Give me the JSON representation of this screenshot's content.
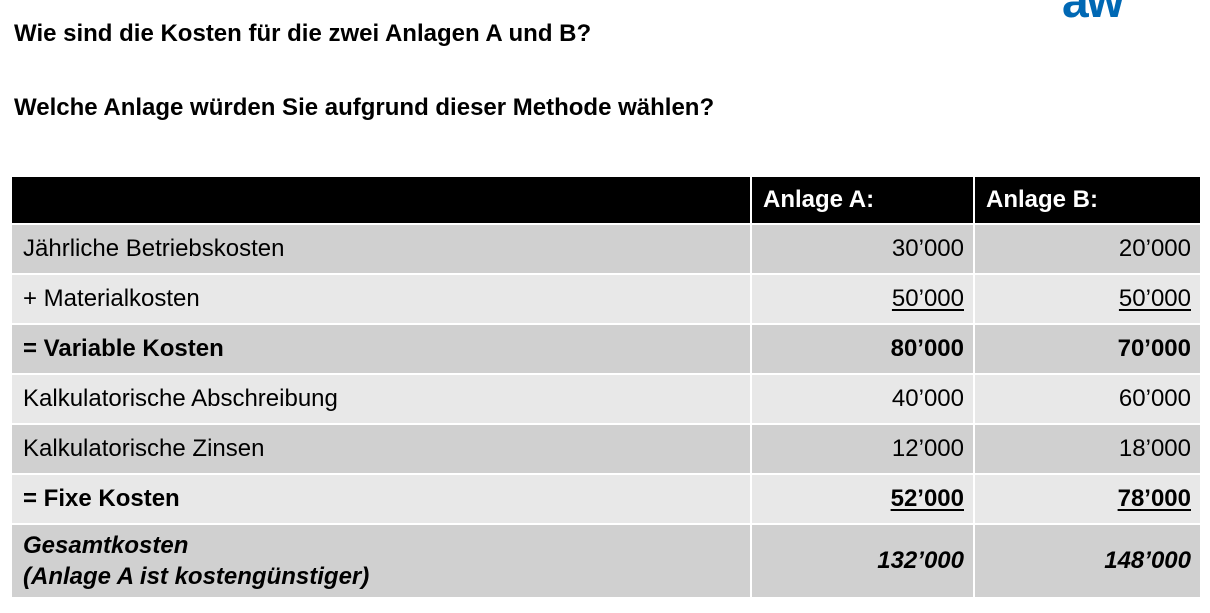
{
  "logo": {
    "text": "aw",
    "color": "#0068b4"
  },
  "questions": [
    "Wie sind die Kosten für die zwei Anlagen A und B?",
    "Welche Anlage würden Sie aufgrund dieser Methode wählen?"
  ],
  "table": {
    "headers": [
      "",
      "Anlage A:",
      "Anlage B:"
    ],
    "rows": [
      {
        "label": "Jährliche Betriebskosten",
        "a": "30’000",
        "b": "20’000"
      },
      {
        "label": "+ Materialkosten",
        "a": "50’000",
        "b": "50’000"
      },
      {
        "label": "= Variable Kosten",
        "a": "80’000",
        "b": "70’000"
      },
      {
        "label": "Kalkulatorische Abschreibung",
        "a": "40’000",
        "b": "60’000"
      },
      {
        "label": "Kalkulatorische Zinsen",
        "a": "12’000",
        "b": "18’000"
      },
      {
        "label": "= Fixe Kosten",
        "a": "52’000",
        "b": "78’000"
      },
      {
        "label": "Gesamtkosten",
        "sublabel": "(Anlage A ist kostengünstiger)",
        "a": "132’000",
        "b": "148’000"
      }
    ]
  },
  "colors": {
    "header_bg": "#000000",
    "row_dark": "#d0d0d0",
    "row_light": "#e8e8e8"
  }
}
